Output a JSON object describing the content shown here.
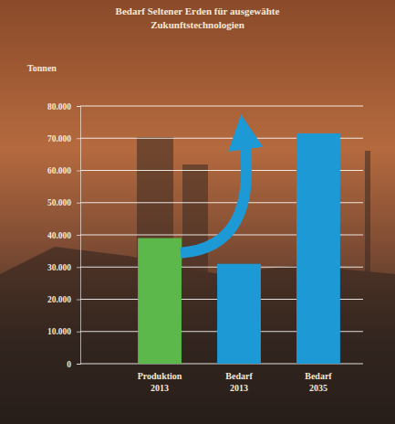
{
  "chart_data": {
    "type": "bar",
    "title": "Bedarf Seltener Erden für ausgewähte Zukunftstechnologien",
    "ylabel": "Tonnen",
    "categories": [
      "Produktion 2013",
      "Bedarf 2013",
      "Bedarf 2035"
    ],
    "values": [
      39000,
      31000,
      71500
    ],
    "colors": [
      "#5cb84a",
      "#1d9ad6",
      "#1d9ad6"
    ],
    "ylim": [
      0,
      80000
    ],
    "yticks": [
      0,
      {
        "value": 10000,
        "label": "10.000"
      },
      {
        "value": 20000,
        "label": "20.000"
      },
      {
        "value": 30000,
        "label": "30.000"
      },
      {
        "value": 40000,
        "label": "40.000"
      },
      {
        "value": 50000,
        "label": "50.000"
      },
      {
        "value": 60000,
        "label": "60.000"
      },
      {
        "value": 70000,
        "label": "70.000"
      },
      {
        "value": 80000,
        "label": "80.000"
      }
    ],
    "grid": true
  }
}
